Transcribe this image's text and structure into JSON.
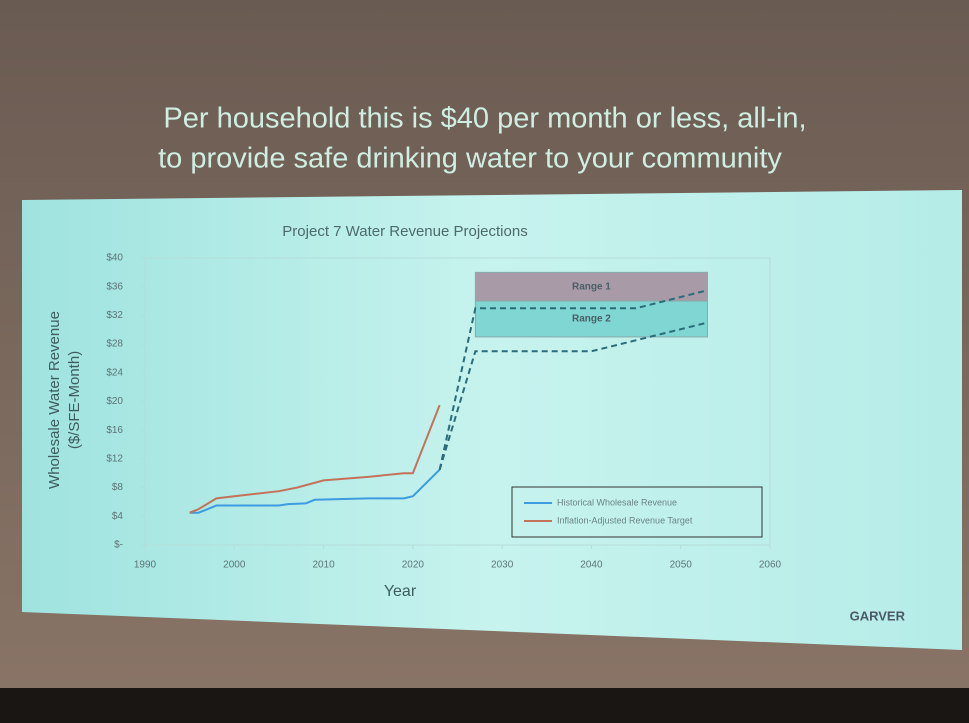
{
  "slide_title": [
    "Per household this is $40 per month or less, all-in,",
    "to provide safe drinking water to your community"
  ],
  "logo": "GARVER",
  "chart_data": {
    "type": "line",
    "title": "Project 7 Water Revenue Projections",
    "x_label": "Year",
    "y_label": [
      "Wholesale Water Revenue",
      "($/SFE-Month)"
    ],
    "xlim": [
      1990,
      2060
    ],
    "xticks": [
      1990,
      2000,
      2010,
      2020,
      2030,
      2040,
      2050,
      2060
    ],
    "ylim": [
      0,
      40
    ],
    "yticks": [
      {
        "value": 0,
        "label": "$-"
      },
      {
        "value": 4,
        "label": "$4"
      },
      {
        "value": 8,
        "label": "$8"
      },
      {
        "value": 12,
        "label": "$12"
      },
      {
        "value": 16,
        "label": "$16"
      },
      {
        "value": 20,
        "label": "$20"
      },
      {
        "value": 24,
        "label": "$24"
      },
      {
        "value": 28,
        "label": "$28"
      },
      {
        "value": 32,
        "label": "$32"
      },
      {
        "value": 36,
        "label": "$36"
      },
      {
        "value": 40,
        "label": "$40"
      }
    ],
    "legend": "lower right",
    "ranges": [
      {
        "label": "Range 1",
        "x": [
          2027,
          2053
        ],
        "y": [
          34,
          38
        ],
        "color": "#a99aa8"
      },
      {
        "label": "Range 2",
        "x": [
          2027,
          2053
        ],
        "y": [
          29,
          34
        ],
        "color": "#7fd6d2"
      }
    ],
    "series": [
      {
        "name": "Historical Wholesale Revenue",
        "color": "#3d9be0",
        "dashed": false,
        "x": [
          1995,
          1996,
          1998,
          2000,
          2005,
          2006,
          2008,
          2009,
          2015,
          2019,
          2020,
          2023
        ],
        "values": [
          4.5,
          4.5,
          5.5,
          5.5,
          5.5,
          5.7,
          5.8,
          6.3,
          6.5,
          6.5,
          6.8,
          10.5
        ]
      },
      {
        "name": "Inflation-Adjusted Revenue Target",
        "color": "#c4725a",
        "dashed": false,
        "x": [
          1995,
          1996,
          1998,
          2000,
          2005,
          2007,
          2010,
          2015,
          2019,
          2020,
          2023
        ],
        "values": [
          4.5,
          5,
          6.5,
          6.8,
          7.5,
          8,
          9,
          9.5,
          10,
          10,
          19.5
        ]
      },
      {
        "color": "#2b6c7a",
        "dashed": true,
        "x": [
          2023,
          2027,
          2045,
          2053
        ],
        "values": [
          10.5,
          33,
          33,
          35.5
        ]
      },
      {
        "color": "#2b6c7a",
        "dashed": true,
        "x": [
          2023,
          2027,
          2040,
          2053
        ],
        "values": [
          10.5,
          27,
          27,
          31
        ]
      }
    ]
  }
}
